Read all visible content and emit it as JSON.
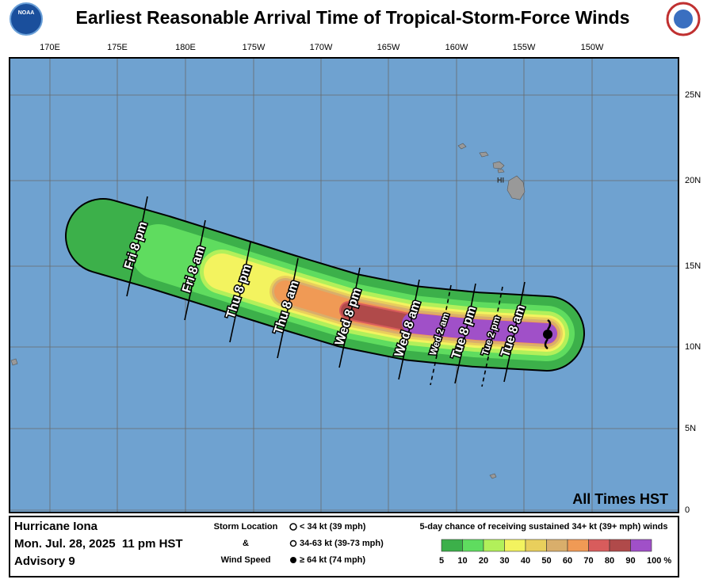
{
  "header": {
    "title": "Earliest Reasonable Arrival Time of Tropical-Storm-Force Winds",
    "noaa_logo": "NOAA"
  },
  "map": {
    "lon_labels": [
      "170E",
      "175E",
      "180E",
      "175W",
      "170W",
      "165W",
      "160W",
      "155W",
      "150W"
    ],
    "lat_labels": [
      "25N",
      "20N",
      "15N",
      "10N",
      "5N",
      "0"
    ],
    "island_label": "HI",
    "time_labels": [
      "Fri 8 pm",
      "Fri 8 am",
      "Thu 8 pm",
      "Thu 8 am",
      "Wed 8 pm",
      "Wed 8 am",
      "Wed 2 am",
      "Tue 8 pm",
      "Tue 2 pm",
      "Tue 8 am"
    ],
    "times_note": "All Times HST"
  },
  "footer": {
    "storm": {
      "name": "Hurricane Iona",
      "date": "Mon. Jul. 28, 2025  11 pm HST",
      "advisory": "Advisory 9"
    },
    "key": {
      "label_lines": [
        "Storm Location",
        "&",
        "Wind Speed"
      ],
      "symbols": [
        "< 34 kt (39 mph)",
        "34-63 kt (39-73 mph)",
        "≥ 64 kt (74 mph)"
      ]
    },
    "probability": {
      "title": "5-day chance of receiving sustained 34+ kt (39+ mph) winds",
      "labels": [
        "5",
        "10",
        "20",
        "30",
        "40",
        "50",
        "60",
        "70",
        "80",
        "90",
        "100 %"
      ]
    }
  }
}
